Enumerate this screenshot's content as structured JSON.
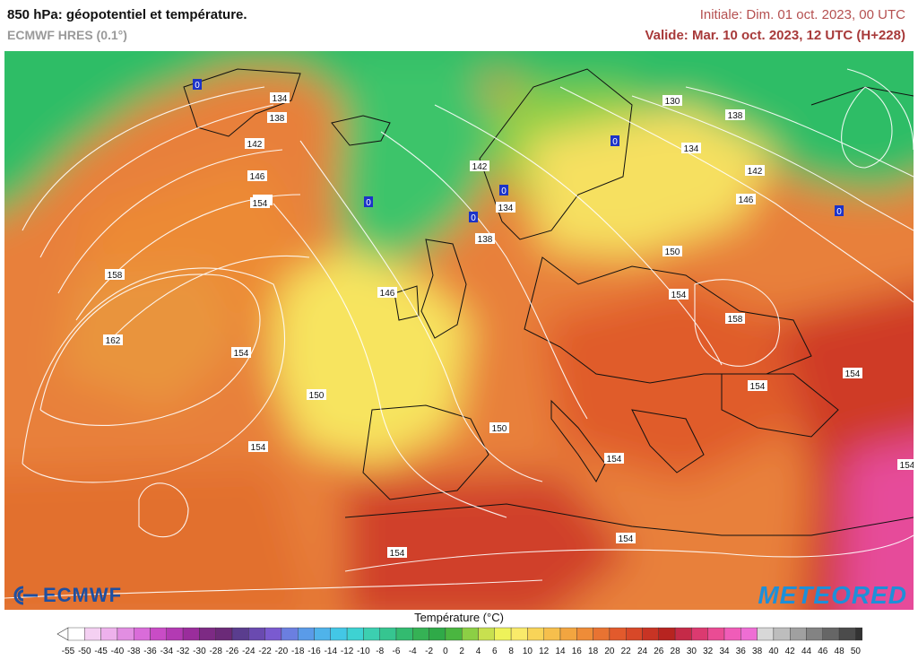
{
  "header": {
    "title": "850 hPa: géopotentiel et température.",
    "model": "ECMWF HRES (0.1°)",
    "initial": "Initiale: Dim. 01 oct. 2023, 00 UTC",
    "valid": "Valide: Mar. 10 oct. 2023, 12 UTC (H+228)"
  },
  "logos": {
    "left_text": "ECMWF",
    "right_text": "METEORED",
    "ecmwf_color": "#1f4fa0",
    "meteored_color": "#1e8fd8"
  },
  "colorbar": {
    "title": "Température (°C)",
    "ticks": [
      "-55",
      "-50",
      "-45",
      "-40",
      "-38",
      "-36",
      "-34",
      "-32",
      "-30",
      "-28",
      "-26",
      "-24",
      "-22",
      "-20",
      "-18",
      "-16",
      "-14",
      "-12",
      "-10",
      "-8",
      "-6",
      "-4",
      "-2",
      "0",
      "2",
      "4",
      "6",
      "8",
      "10",
      "12",
      "14",
      "16",
      "18",
      "20",
      "22",
      "24",
      "26",
      "28",
      "30",
      "32",
      "34",
      "36",
      "38",
      "40",
      "42",
      "44",
      "46",
      "48",
      "50"
    ],
    "colors": [
      "#ffffff",
      "#f4d0f2",
      "#eeb1ec",
      "#e28ee2",
      "#d96cd9",
      "#c94cc6",
      "#b33ab3",
      "#9a2d9c",
      "#7d2a84",
      "#6b2a78",
      "#5a3d8e",
      "#6a4ab0",
      "#7a5ad0",
      "#6b7fe0",
      "#5a9be8",
      "#4fb3ea",
      "#43c7e6",
      "#3ed2d2",
      "#3ccfb0",
      "#36c590",
      "#33bb70",
      "#35b255",
      "#2faa48",
      "#4ab640",
      "#8ccf45",
      "#c8e04f",
      "#eef25a",
      "#f9ea6a",
      "#f8d458",
      "#f6bf4c",
      "#f2a540",
      "#ee8c38",
      "#e87332",
      "#e25a2c",
      "#d84828",
      "#c83424",
      "#b72420",
      "#c52a48",
      "#db3a70",
      "#ea4c94",
      "#f05cb8",
      "#ee6ed4",
      "#d8d8d8",
      "#bdbdbd",
      "#a0a0a0",
      "#838383",
      "#666666",
      "#4b4b4b",
      "#333333"
    ]
  },
  "contour_labels": [
    "134",
    "138",
    "142",
    "146",
    "150",
    "154",
    "158",
    "162",
    "154",
    "150",
    "146",
    "142",
    "138",
    "134",
    "130",
    "138",
    "134",
    "142",
    "146",
    "150",
    "154",
    "158",
    "154",
    "154",
    "154",
    "150",
    "154",
    "154",
    "154",
    "154",
    "0",
    "0",
    "0",
    "0",
    "0",
    "0"
  ],
  "region_colors": {
    "cold_green": "#2fc268",
    "yellow": "#f5e35a",
    "orange": "#f0a13c",
    "red_orange": "#e2612d",
    "red": "#cf3a26",
    "magenta": "#e64b9a",
    "sea_marker": "#1c33c8"
  }
}
